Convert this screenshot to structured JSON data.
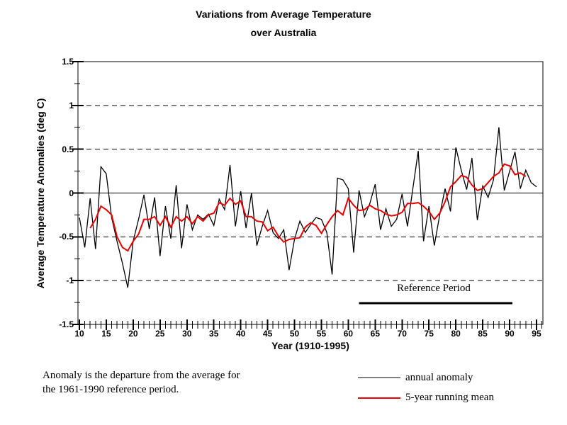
{
  "title": {
    "line1": "Variations from Average Temperature",
    "line2": "over Australia"
  },
  "y_axis": {
    "label": "Average Temperature Anomalies (deg C)",
    "tick_labels": [
      "1.5",
      "1",
      "0.5",
      "0",
      "-0.5",
      "-1",
      "-1.5"
    ],
    "tick_values": [
      1.5,
      1,
      0.5,
      0,
      -0.5,
      -1,
      -1.5
    ],
    "minor_step": 0.25,
    "range": [
      -1.5,
      1.5
    ]
  },
  "x_axis": {
    "label": "Year (1910-1995)",
    "tick_labels": [
      "10",
      "15",
      "20",
      "25",
      "30",
      "35",
      "40",
      "45",
      "50",
      "55",
      "60",
      "65",
      "70",
      "75",
      "80",
      "85",
      "90",
      "95"
    ],
    "tick_years": [
      1910,
      1915,
      1920,
      1925,
      1930,
      1935,
      1940,
      1945,
      1950,
      1955,
      1960,
      1965,
      1970,
      1975,
      1980,
      1985,
      1990,
      1995
    ],
    "minor_step_years": 1,
    "range": [
      1910,
      1996
    ]
  },
  "annotation": {
    "reference_period_label": "Reference Period",
    "bar_year_start": 1961,
    "bar_year_end": 1990
  },
  "footnote": {
    "line1": "Anomaly is the departure from the average for",
    "line2": "the 1961-1990 reference period."
  },
  "legend": [
    {
      "label": "annual anomaly",
      "color": "#000000"
    },
    {
      "label": "5-year running mean",
      "color": "#ee0000"
    }
  ],
  "colors": {
    "background": "#ffffff",
    "axis": "#000000",
    "grid": "#000000",
    "annual_line": "#000000",
    "running_mean_line": "#ee0000",
    "text": "#000000"
  },
  "chart_data": {
    "type": "line",
    "title": "Variations from Average Temperature over Australia",
    "xlabel": "Year (1910-1995)",
    "ylabel": "Average Temperature Anomalies (deg C)",
    "ylim": [
      -1.5,
      1.5
    ],
    "xlim": [
      1910,
      1995
    ],
    "grid": "horizontal dashed at -1,-0.5,0.5,1; solid zero line",
    "legend_position": "below-right",
    "series": [
      {
        "name": "annual anomaly",
        "color": "#000000",
        "start_year": 1910,
        "values": [
          -0.28,
          -0.62,
          -0.06,
          -0.64,
          0.3,
          0.22,
          -0.28,
          -0.55,
          -0.8,
          -1.08,
          -0.55,
          -0.3,
          -0.02,
          -0.41,
          -0.05,
          -0.72,
          -0.15,
          -0.52,
          0.09,
          -0.63,
          -0.13,
          -0.42,
          -0.25,
          -0.3,
          -0.24,
          -0.37,
          -0.07,
          -0.19,
          0.32,
          -0.38,
          0.02,
          -0.4,
          0.0,
          -0.6,
          -0.38,
          -0.2,
          -0.45,
          -0.52,
          -0.42,
          -0.88,
          -0.53,
          -0.32,
          -0.45,
          -0.36,
          -0.28,
          -0.3,
          -0.45,
          -0.93,
          0.17,
          0.15,
          0.05,
          -0.68,
          0.03,
          -0.27,
          -0.12,
          0.1,
          -0.42,
          -0.18,
          -0.38,
          -0.3,
          -0.01,
          -0.38,
          0.05,
          0.48,
          -0.55,
          -0.15,
          -0.6,
          -0.25,
          0.05,
          -0.21,
          0.52,
          0.26,
          0.04,
          0.4,
          -0.31,
          0.08,
          -0.05,
          0.15,
          0.75,
          0.03,
          0.25,
          0.47,
          0.05,
          0.26,
          0.12,
          0.07
        ]
      },
      {
        "name": "5-year running mean",
        "color": "#ee0000",
        "start_year": 1912,
        "values": [
          -0.4,
          -0.3,
          -0.15,
          -0.19,
          -0.25,
          -0.5,
          -0.62,
          -0.66,
          -0.55,
          -0.47,
          -0.3,
          -0.3,
          -0.27,
          -0.37,
          -0.27,
          -0.39,
          -0.27,
          -0.32,
          -0.27,
          -0.35,
          -0.27,
          -0.32,
          -0.25,
          -0.23,
          -0.11,
          -0.14,
          -0.06,
          -0.13,
          -0.09,
          -0.27,
          -0.27,
          -0.32,
          -0.33,
          -0.43,
          -0.39,
          -0.49,
          -0.56,
          -0.53,
          -0.52,
          -0.51,
          -0.39,
          -0.34,
          -0.37,
          -0.46,
          -0.36,
          -0.27,
          -0.2,
          -0.25,
          -0.06,
          -0.14,
          -0.2,
          -0.19,
          -0.14,
          -0.18,
          -0.2,
          -0.24,
          -0.26,
          -0.25,
          -0.22,
          -0.12,
          -0.12,
          -0.11,
          -0.15,
          -0.21,
          -0.3,
          -0.23,
          -0.1,
          0.07,
          0.13,
          0.2,
          0.18,
          0.09,
          0.03,
          0.05,
          0.12,
          0.19,
          0.23,
          0.33,
          0.31,
          0.21,
          0.23,
          0.19
        ]
      }
    ]
  }
}
